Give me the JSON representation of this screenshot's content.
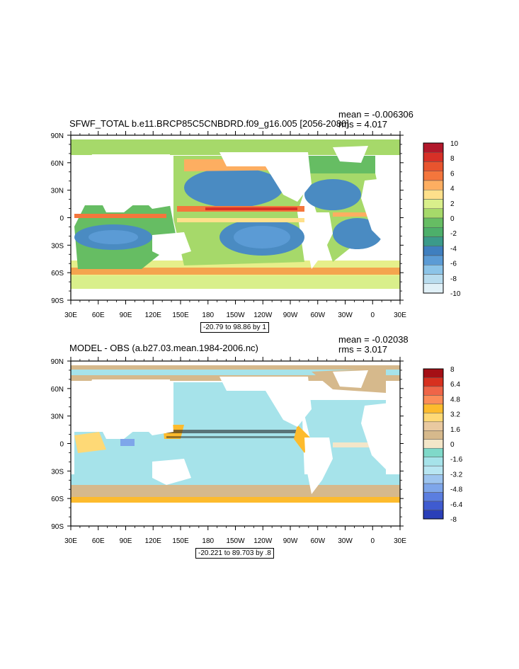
{
  "panels": [
    {
      "title": "SFWF_TOTAL b.e11.BRCP85C5CNBDRD.f09_g16.005 [2056-2080]",
      "mean": "mean = -0.006306",
      "rms": "rms = 4.017",
      "range": "-20.79 to 98.86 by 1",
      "colorbar_labels": [
        "10",
        "8",
        "6",
        "4",
        "2",
        "0",
        "-2",
        "-4",
        "-6",
        "-8",
        "-10"
      ],
      "colorbar_colors": [
        "#b2182b",
        "#d73027",
        "#e8542e",
        "#f4763c",
        "#fdae61",
        "#fee08b",
        "#d9ef8b",
        "#a6d96a",
        "#66bd63",
        "#4daf6a",
        "#3b9a8a",
        "#3f7fbf",
        "#5b9bd5",
        "#8cc4e8",
        "#b8dcee",
        "#e0f0f7"
      ]
    },
    {
      "title": "MODEL - OBS (a.b27.03.mean.1984-2006.nc)",
      "mean": "mean = -0.02038",
      "rms": "rms = 3.017",
      "range": "-20.221 to 89.703 by .8",
      "colorbar_labels": [
        "8",
        "6.4",
        "4.8",
        "3.2",
        "1.6",
        "0",
        "-1.6",
        "-3.2",
        "-4.8",
        "-6.4",
        "-8"
      ],
      "colorbar_colors": [
        "#a50f15",
        "#d7301f",
        "#ef6548",
        "#fc8d59",
        "#fdbb2d",
        "#fed976",
        "#e9c9a0",
        "#d6b98c",
        "#f3e6c9",
        "#7fd9c9",
        "#a6e3ea",
        "#b8e6f2",
        "#9ec5ef",
        "#7ea6ea",
        "#5b7ee0",
        "#3f5bd0",
        "#2a3fb8"
      ]
    }
  ],
  "axes": {
    "y_ticks": [
      "90N",
      "60N",
      "30N",
      "0",
      "30S",
      "60S",
      "90S"
    ],
    "x_ticks": [
      "30E",
      "60E",
      "90E",
      "120E",
      "150E",
      "180",
      "150W",
      "120W",
      "90W",
      "60W",
      "30W",
      "0",
      "30E"
    ]
  }
}
